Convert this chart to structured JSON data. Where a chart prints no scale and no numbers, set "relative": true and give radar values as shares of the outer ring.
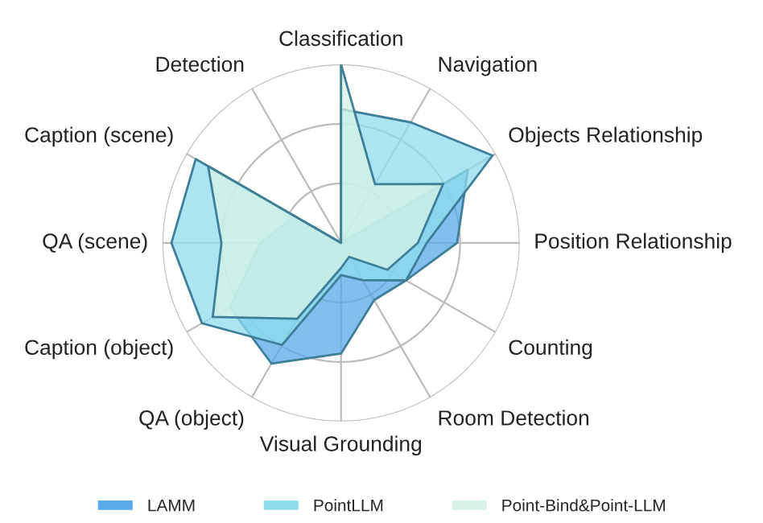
{
  "chart_data": {
    "type": "radar",
    "relative": true,
    "categories": [
      "Classification",
      "Navigation",
      "Objects Relationship",
      "Position Relationship",
      "Counting",
      "Room Detection",
      "Visual Grounding",
      "QA (object)",
      "Caption (object)",
      "QA (scene)",
      "Caption (scene)",
      "Detection"
    ],
    "series": [
      {
        "name": "LAMM",
        "color": "#5aaae8",
        "values": [
          0,
          0,
          0.82,
          0.65,
          0.42,
          0.37,
          0.62,
          0.78,
          0.72,
          0.45,
          0.3,
          0
        ]
      },
      {
        "name": "PointLLM",
        "color": "#8edcec",
        "values": [
          0.75,
          0.78,
          0.98,
          0.48,
          0.42,
          0.24,
          0.18,
          0.66,
          0.9,
          0.95,
          0.94,
          0
        ]
      },
      {
        "name": "Point-Bind&Point-LLM",
        "color": "#d6f3e6",
        "values": [
          1,
          0.38,
          0.66,
          0.43,
          0.3,
          0.09,
          0.14,
          0.49,
          0.83,
          0.67,
          0.86,
          0
        ]
      }
    ],
    "grid": true,
    "legend": "bottom"
  }
}
